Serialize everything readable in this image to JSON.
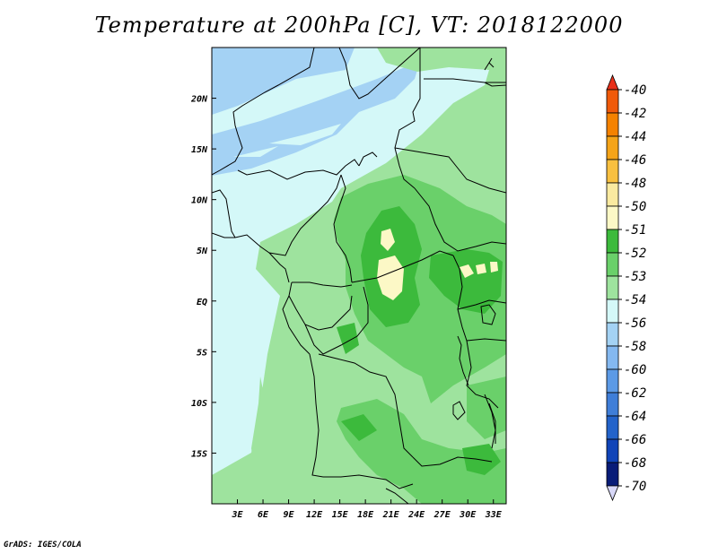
{
  "title": "Temperature at 200hPa [C], VT: 2018122000",
  "footer": "GrADS: IGES/COLA",
  "map": {
    "lon_range": [
      0,
      34.5
    ],
    "lat_range": [
      -20,
      25
    ],
    "lon_ticks": [
      {
        "lon": 3,
        "label": "3E"
      },
      {
        "lon": 6,
        "label": "6E"
      },
      {
        "lon": 9,
        "label": "9E"
      },
      {
        "lon": 12,
        "label": "12E"
      },
      {
        "lon": 15,
        "label": "15E"
      },
      {
        "lon": 18,
        "label": "18E"
      },
      {
        "lon": 21,
        "label": "21E"
      },
      {
        "lon": 24,
        "label": "24E"
      },
      {
        "lon": 27,
        "label": "27E"
      },
      {
        "lon": 30,
        "label": "30E"
      },
      {
        "lon": 33,
        "label": "33E"
      }
    ],
    "lat_ticks": [
      {
        "lat": 20,
        "label": "20N"
      },
      {
        "lat": 15,
        "label": "15N"
      },
      {
        "lat": 10,
        "label": "10N"
      },
      {
        "lat": 5,
        "label": "5N"
      },
      {
        "lat": 0,
        "label": "EQ"
      },
      {
        "lat": -5,
        "label": "5S"
      },
      {
        "lat": -10,
        "label": "10S"
      },
      {
        "lat": -15,
        "label": "15S"
      }
    ]
  },
  "colorbar": {
    "levels": [
      "-40",
      "-42",
      "-44",
      "-46",
      "-48",
      "-50",
      "-51",
      "-52",
      "-53",
      "-54",
      "-56",
      "-58",
      "-60",
      "-62",
      "-64",
      "-66",
      "-68",
      "-70"
    ],
    "colors": [
      "#e8301a",
      "#f05a0a",
      "#f58200",
      "#f5a418",
      "#f8c040",
      "#faeaa0",
      "#fcf8c6",
      "#3cba3c",
      "#6ad06a",
      "#9ee39e",
      "#d4f8f8",
      "#a4d2f4",
      "#84b8f0",
      "#5c9ae6",
      "#3f7ed8",
      "#2363ca",
      "#1044b8",
      "#081c78",
      "#d8d8f8"
    ]
  },
  "chart_data": {
    "type": "heatmap",
    "title": "Temperature at 200hPa [C], VT: 2018122000",
    "xlabel": "",
    "ylabel": "",
    "x_range": [
      0,
      34.5
    ],
    "y_range": [
      -20,
      25
    ],
    "levels": [
      -40,
      -42,
      -44,
      -46,
      -48,
      -50,
      -51,
      -52,
      -53,
      -54,
      -56,
      -58,
      -60,
      -62,
      -64,
      -66,
      -68,
      -70
    ]
  }
}
